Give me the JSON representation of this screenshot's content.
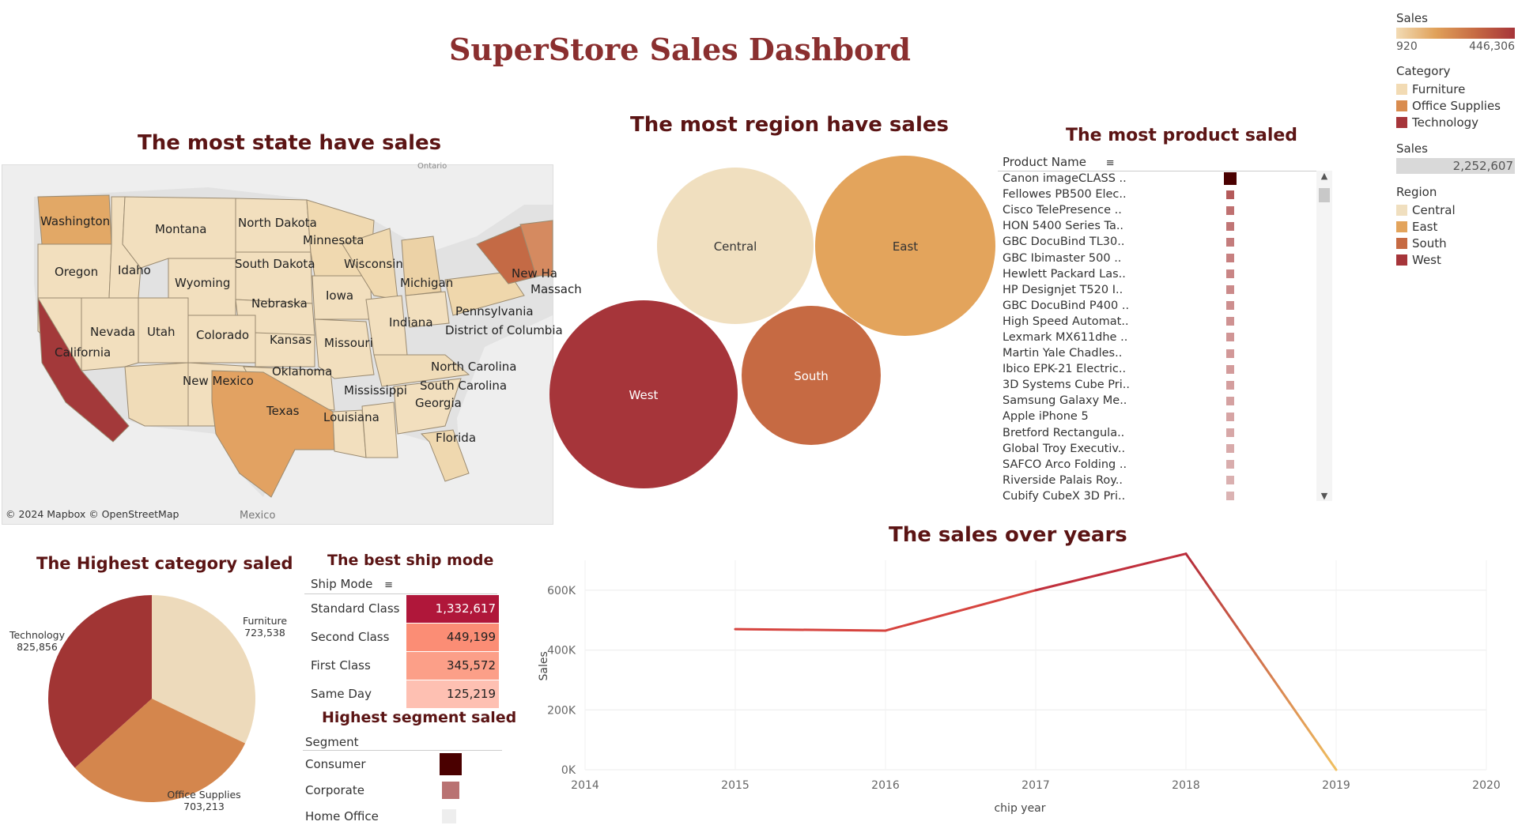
{
  "dashboard": {
    "title": "SuperStore Sales Dashbord"
  },
  "colors": {
    "accent_title": "#8a2f2f",
    "heading": "#5b1414"
  },
  "legend": {
    "sales_heading": "Sales",
    "sales_min": "920",
    "sales_max": "446,306",
    "category_heading": "Category",
    "categories": [
      {
        "label": "Furniture",
        "color": "#f2dbb4"
      },
      {
        "label": "Office Supplies",
        "color": "#d98c4f"
      },
      {
        "label": "Technology",
        "color": "#a6353a"
      }
    ],
    "total_heading": "Sales",
    "total_value": "2,252,607",
    "region_heading": "Region",
    "regions": [
      {
        "label": "Central",
        "color": "#f0dfbf"
      },
      {
        "label": "East",
        "color": "#e3a45c"
      },
      {
        "label": "South",
        "color": "#c66a43"
      },
      {
        "label": "West",
        "color": "#a6353a"
      }
    ]
  },
  "map": {
    "title": "The most state have sales",
    "attribution": "© 2024 Mapbox © OpenStreetMap",
    "labels": [
      "Ontario",
      "Mexico",
      "Washington",
      "Montana",
      "North Dakota",
      "Minnesota",
      "Oregon",
      "Idaho",
      "Wyoming",
      "South Dakota",
      "Wisconsin",
      "Michigan",
      "New Ha",
      "Massach",
      "Nebraska",
      "Iowa",
      "Indiana",
      "Pennsylvania",
      "Nevada",
      "Utah",
      "Colorado",
      "Kansas",
      "Missouri",
      "District of Columbia",
      "California",
      "Oklahoma",
      "North Carolina",
      "New Mexico",
      "Mississippi",
      "South Carolina",
      "Georgia",
      "Texas",
      "Louisiana",
      "Florida"
    ]
  },
  "regions_chart": {
    "title": "The most region have sales",
    "bubbles": [
      {
        "label": "Central",
        "color": "#f0dfbf"
      },
      {
        "label": "East",
        "color": "#e3a45c"
      },
      {
        "label": "West",
        "color": "#a6353a"
      },
      {
        "label": "South",
        "color": "#c66a43"
      }
    ]
  },
  "products": {
    "title": "The most product saled",
    "column_header": "Product Name",
    "items": [
      {
        "name": "Canon imageCLASS ..",
        "color": "#4a0000"
      },
      {
        "name": "Fellowes PB500 Elec..",
        "color": "#b45a5a"
      },
      {
        "name": "Cisco TelePresence ..",
        "color": "#bf7070"
      },
      {
        "name": "HON 5400 Series Ta..",
        "color": "#c07575"
      },
      {
        "name": "GBC DocuBind TL30..",
        "color": "#c47c7c"
      },
      {
        "name": "GBC Ibimaster 500 ..",
        "color": "#c78080"
      },
      {
        "name": "Hewlett Packard Las..",
        "color": "#c98585"
      },
      {
        "name": "HP Designjet T520 I..",
        "color": "#cb8a8a"
      },
      {
        "name": "GBC DocuBind P400 ..",
        "color": "#cd8e8e"
      },
      {
        "name": "High Speed Automat..",
        "color": "#cf9292"
      },
      {
        "name": "Lexmark MX611dhe ..",
        "color": "#d09595"
      },
      {
        "name": "Martin Yale Chadles..",
        "color": "#d29898"
      },
      {
        "name": "Ibico EPK-21 Electric..",
        "color": "#d39b9b"
      },
      {
        "name": "3D Systems Cube Pri..",
        "color": "#d49e9e"
      },
      {
        "name": "Samsung Galaxy Me..",
        "color": "#d5a1a1"
      },
      {
        "name": "Apple iPhone 5",
        "color": "#d6a4a4"
      },
      {
        "name": "Bretford Rectangula..",
        "color": "#d7a7a7"
      },
      {
        "name": "Global Troy Executiv..",
        "color": "#d8aaaa"
      },
      {
        "name": "SAFCO Arco Folding ..",
        "color": "#d9adad"
      },
      {
        "name": "Riverside Palais Roy..",
        "color": "#dab0b0"
      },
      {
        "name": "Cubify CubeX 3D Pri..",
        "color": "#dbb3b3"
      }
    ]
  },
  "category_pie": {
    "title": "The Highest category saled",
    "slices": [
      {
        "label": "Furniture",
        "value": "723,538",
        "amount": 723538,
        "color": "#eddabb"
      },
      {
        "label": "Office Supplies",
        "value": "703,213",
        "amount": 703213,
        "color": "#d4864d"
      },
      {
        "label": "Technology",
        "value": "825,856",
        "amount": 825856,
        "color": "#a13534"
      }
    ]
  },
  "ship_mode": {
    "title": "The best ship mode",
    "column_header": "Ship Mode",
    "rows": [
      {
        "label": "Standard Class",
        "value": "1,332,617",
        "color": "#b0173a",
        "text_color": "#ffffff"
      },
      {
        "label": "Second Class",
        "value": "449,199",
        "color": "#fb8d75",
        "text_color": "#222222"
      },
      {
        "label": "First Class",
        "value": "345,572",
        "color": "#fc9f88",
        "text_color": "#222222"
      },
      {
        "label": "Same Day",
        "value": "125,219",
        "color": "#fec0b2",
        "text_color": "#222222"
      }
    ]
  },
  "segment": {
    "title": "Highest segment saled",
    "column_header": "Segment",
    "rows": [
      {
        "label": "Consumer",
        "color": "#4a0000"
      },
      {
        "label": "Corporate",
        "color": "#b97272"
      },
      {
        "label": "Home Office",
        "color": "#eeeeee"
      }
    ]
  },
  "chart_data": {
    "type": "line",
    "title": "The sales over years",
    "xlabel": "chip year",
    "ylabel": "Sales",
    "x": [
      2015,
      2016,
      2017,
      2018,
      2019
    ],
    "values": [
      470000,
      465000,
      600000,
      722000,
      0
    ],
    "xlim": [
      2014,
      2020
    ],
    "ylim": [
      0,
      700000
    ],
    "x_ticks": [
      "2014",
      "2015",
      "2016",
      "2017",
      "2018",
      "2019",
      "2020"
    ],
    "y_ticks": [
      "0K",
      "200K",
      "400K",
      "600K"
    ],
    "grid": true
  }
}
